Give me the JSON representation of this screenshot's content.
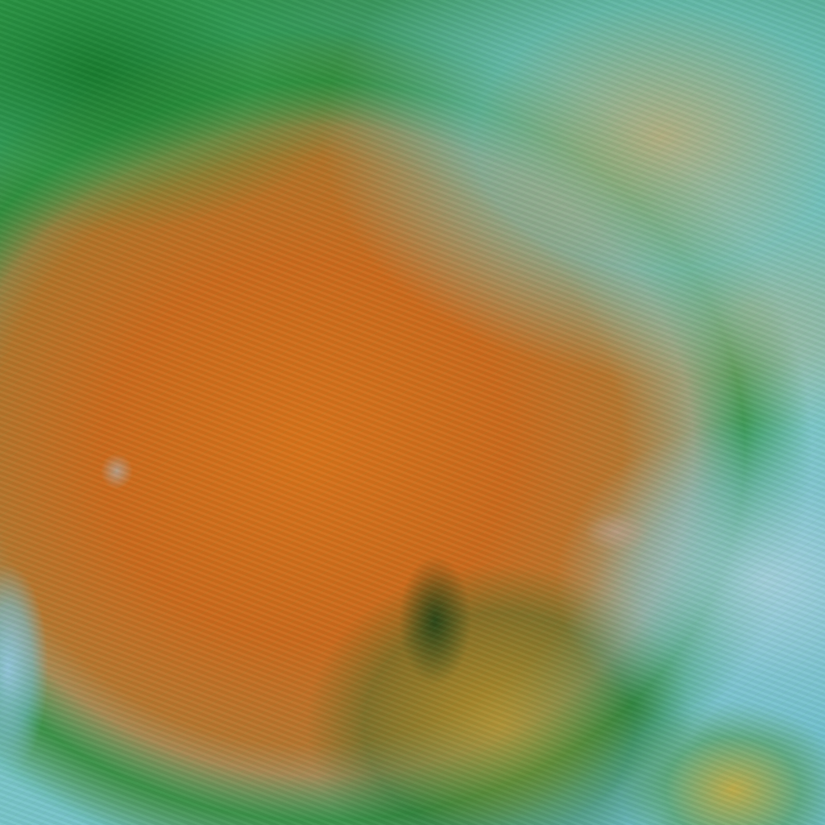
{
  "image": {
    "kind": "satellite false-color imagery",
    "colors": {
      "cloud_orange": "#d8731a",
      "edge_green": "#2a8a3a",
      "cyan": "#7ec8c8",
      "tan": "#d2af78",
      "light_blue": "#aad2e1"
    }
  }
}
